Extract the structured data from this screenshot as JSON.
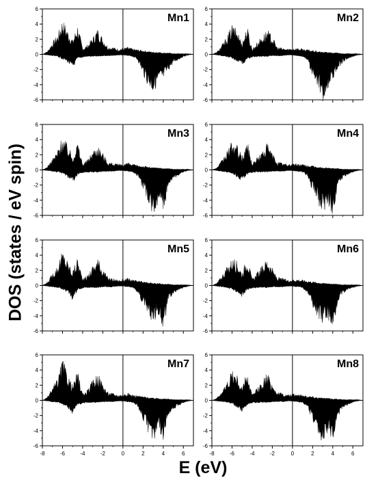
{
  "figure": {
    "ylabel": "DOS (states / eV spin)",
    "xlabel": "E (eV)",
    "fill_color": "#000000"
  },
  "chart_data": [
    {
      "type": "area",
      "title": "Mn1",
      "xlim": [
        -8,
        7
      ],
      "ylim": [
        -6,
        6
      ],
      "x_ticks": [
        "-8",
        "-6",
        "-4",
        "-2",
        "0",
        "2",
        "4",
        "6"
      ],
      "y_ticks": [
        "-6",
        "-4",
        "-2",
        "0",
        "2",
        "4",
        "6"
      ],
      "x": [
        -8,
        -7.5,
        -7,
        -6.5,
        -6,
        -5.5,
        -5,
        -4.5,
        -4,
        -3.5,
        -3,
        -2.5,
        -2,
        -1.5,
        -1,
        -0.5,
        0,
        0.5,
        1,
        1.5,
        2,
        2.5,
        3,
        3.5,
        4,
        4.5,
        5,
        5.5,
        6,
        6.5,
        7
      ],
      "up": [
        0,
        0.4,
        1.5,
        2.4,
        4.3,
        3.0,
        1.8,
        3.6,
        0.8,
        1.2,
        2.1,
        3.2,
        2.0,
        1.0,
        0.9,
        0.7,
        0.8,
        0.9,
        0.7,
        0.6,
        0.5,
        0.4,
        0.3,
        0.3,
        0.2,
        0.2,
        0.1,
        0.1,
        0.1,
        0.1,
        0
      ],
      "down": [
        0,
        -0.1,
        -0.2,
        -0.3,
        -0.6,
        -1.0,
        -1.8,
        -0.6,
        -0.4,
        -0.3,
        -0.3,
        -0.3,
        -0.2,
        -0.2,
        -0.2,
        -0.1,
        -0.1,
        -0.2,
        -0.3,
        -0.8,
        -2.5,
        -3.8,
        -4.7,
        -3.6,
        -3.2,
        -2.0,
        -1.1,
        -0.7,
        -0.3,
        -0.1,
        0
      ]
    },
    {
      "type": "area",
      "title": "Mn2",
      "xlim": [
        -8,
        7
      ],
      "ylim": [
        -6,
        6
      ],
      "x_ticks": [
        "-8",
        "-6",
        "-4",
        "-2",
        "0",
        "2",
        "4",
        "6"
      ],
      "y_ticks": [
        "-6",
        "-4",
        "-2",
        "0",
        "2",
        "4",
        "6"
      ],
      "x": [
        -8,
        -7.5,
        -7,
        -6.5,
        -6,
        -5.5,
        -5,
        -4.5,
        -4,
        -3.5,
        -3,
        -2.5,
        -2,
        -1.5,
        -1,
        -0.5,
        0,
        0.5,
        1,
        1.5,
        2,
        2.5,
        3,
        3.5,
        4,
        4.5,
        5,
        5.5,
        6,
        6.5,
        7
      ],
      "up": [
        0,
        0.3,
        1.2,
        2.2,
        3.6,
        3.0,
        1.5,
        3.4,
        0.7,
        1.5,
        2.3,
        3.0,
        2.2,
        0.9,
        0.8,
        0.7,
        0.8,
        0.8,
        0.7,
        0.6,
        0.5,
        0.4,
        0.3,
        0.3,
        0.2,
        0.2,
        0.1,
        0.1,
        0.1,
        0.1,
        0
      ],
      "down": [
        0,
        -0.1,
        -0.2,
        -0.3,
        -0.5,
        -0.9,
        -1.4,
        -0.6,
        -0.4,
        -0.3,
        -0.3,
        -0.3,
        -0.2,
        -0.2,
        -0.2,
        -0.1,
        -0.1,
        -0.2,
        -0.3,
        -0.9,
        -2.6,
        -4.0,
        -5.8,
        -4.2,
        -3.0,
        -1.8,
        -1.0,
        -0.6,
        -0.3,
        -0.1,
        0
      ]
    },
    {
      "type": "area",
      "title": "Mn3",
      "xlim": [
        -8,
        7
      ],
      "ylim": [
        -6,
        6
      ],
      "x_ticks": [
        "-8",
        "-6",
        "-4",
        "-2",
        "0",
        "2",
        "4",
        "6"
      ],
      "y_ticks": [
        "-6",
        "-4",
        "-2",
        "0",
        "2",
        "4",
        "6"
      ],
      "x": [
        -8,
        -7.5,
        -7,
        -6.5,
        -6,
        -5.5,
        -5,
        -4.5,
        -4,
        -3.5,
        -3,
        -2.5,
        -2,
        -1.5,
        -1,
        -0.5,
        0,
        0.5,
        1,
        1.5,
        2,
        2.5,
        3,
        3.5,
        4,
        4.5,
        5,
        5.5,
        6,
        6.5,
        7
      ],
      "up": [
        0,
        0.4,
        1.4,
        2.4,
        4.2,
        3.1,
        1.7,
        3.5,
        0.8,
        1.3,
        2.4,
        3.1,
        2.1,
        1.0,
        0.9,
        0.7,
        0.8,
        0.9,
        0.7,
        0.6,
        0.5,
        0.4,
        0.3,
        0.3,
        0.2,
        0.2,
        0.1,
        0.1,
        0.1,
        0.1,
        0
      ],
      "down": [
        0,
        -0.1,
        -0.2,
        -0.3,
        -0.5,
        -0.9,
        -1.7,
        -0.6,
        -0.4,
        -0.3,
        -0.3,
        -0.3,
        -0.2,
        -0.2,
        -0.2,
        -0.1,
        -0.1,
        -0.2,
        -0.3,
        -0.9,
        -2.5,
        -3.8,
        -5.5,
        -4.0,
        -5.4,
        -2.1,
        -1.1,
        -0.7,
        -0.3,
        -0.1,
        0
      ]
    },
    {
      "type": "area",
      "title": "Mn4",
      "xlim": [
        -8,
        7
      ],
      "ylim": [
        -6,
        6
      ],
      "x_ticks": [
        "-8",
        "-6",
        "-4",
        "-2",
        "0",
        "2",
        "4",
        "6"
      ],
      "y_ticks": [
        "-6",
        "-4",
        "-2",
        "0",
        "2",
        "4",
        "6"
      ],
      "x": [
        -8,
        -7.5,
        -7,
        -6.5,
        -6,
        -5.5,
        -5,
        -4.5,
        -4,
        -3.5,
        -3,
        -2.5,
        -2,
        -1.5,
        -1,
        -0.5,
        0,
        0.5,
        1,
        1.5,
        2,
        2.5,
        3,
        3.5,
        4,
        4.5,
        5,
        5.5,
        6,
        6.5,
        7
      ],
      "up": [
        0,
        0.3,
        1.2,
        2.3,
        3.5,
        3.0,
        1.6,
        3.6,
        0.8,
        1.6,
        2.3,
        3.3,
        2.1,
        1.0,
        0.9,
        0.7,
        0.8,
        0.8,
        0.7,
        0.6,
        0.5,
        0.4,
        0.3,
        0.3,
        0.2,
        0.2,
        0.1,
        0.1,
        0.1,
        0.1,
        0
      ],
      "down": [
        0,
        -0.1,
        -0.2,
        -0.3,
        -0.5,
        -0.9,
        -1.4,
        -0.6,
        -0.4,
        -0.3,
        -0.3,
        -0.3,
        -0.2,
        -0.2,
        -0.2,
        -0.1,
        -0.1,
        -0.2,
        -0.3,
        -0.8,
        -2.6,
        -4.0,
        -5.4,
        -4.2,
        -5.6,
        -2.0,
        -1.0,
        -0.6,
        -0.3,
        -0.1,
        0
      ]
    },
    {
      "type": "area",
      "title": "Mn5",
      "xlim": [
        -8,
        7
      ],
      "ylim": [
        -6,
        6
      ],
      "x_ticks": [
        "-8",
        "-6",
        "-4",
        "-2",
        "0",
        "2",
        "4",
        "6"
      ],
      "y_ticks": [
        "-6",
        "-4",
        "-2",
        "0",
        "2",
        "4",
        "6"
      ],
      "x": [
        -8,
        -7.5,
        -7,
        -6.5,
        -6,
        -5.5,
        -5,
        -4.5,
        -4,
        -3.5,
        -3,
        -2.5,
        -2,
        -1.5,
        -1,
        -0.5,
        0,
        0.5,
        1,
        1.5,
        2,
        2.5,
        3,
        3.5,
        4,
        4.5,
        5,
        5.5,
        6,
        6.5,
        7
      ],
      "up": [
        0,
        0.4,
        1.5,
        2.5,
        4.3,
        3.1,
        1.8,
        3.5,
        0.8,
        1.3,
        2.5,
        3.3,
        2.1,
        1.0,
        0.9,
        0.7,
        0.8,
        0.9,
        0.7,
        0.6,
        0.5,
        0.4,
        0.3,
        0.3,
        0.2,
        0.2,
        0.1,
        0.1,
        0.1,
        0.1,
        0
      ],
      "down": [
        0,
        -0.1,
        -0.2,
        -0.3,
        -0.5,
        -0.9,
        -1.8,
        -0.6,
        -0.4,
        -0.3,
        -0.3,
        -0.3,
        -0.2,
        -0.2,
        -0.2,
        -0.1,
        -0.1,
        -0.2,
        -0.3,
        -0.9,
        -2.4,
        -3.7,
        -4.4,
        -3.6,
        -5.7,
        -2.0,
        -1.1,
        -0.7,
        -0.3,
        -0.1,
        0
      ]
    },
    {
      "type": "area",
      "title": "Mn6",
      "xlim": [
        -8,
        7
      ],
      "ylim": [
        -6,
        6
      ],
      "x_ticks": [
        "-8",
        "-6",
        "-4",
        "-2",
        "0",
        "2",
        "4",
        "6"
      ],
      "y_ticks": [
        "-6",
        "-4",
        "-2",
        "0",
        "2",
        "4",
        "6"
      ],
      "x": [
        -8,
        -7.5,
        -7,
        -6.5,
        -6,
        -5.5,
        -5,
        -4.5,
        -4,
        -3.5,
        -3,
        -2.5,
        -2,
        -1.5,
        -1,
        -0.5,
        0,
        0.5,
        1,
        1.5,
        2,
        2.5,
        3,
        3.5,
        4,
        4.5,
        5,
        5.5,
        6,
        6.5,
        7
      ],
      "up": [
        0,
        0.3,
        1.3,
        2.3,
        3.3,
        3.0,
        1.6,
        3.5,
        0.8,
        1.6,
        2.4,
        3.4,
        2.1,
        1.0,
        0.9,
        0.7,
        0.8,
        0.8,
        0.7,
        0.6,
        0.5,
        0.4,
        0.3,
        0.3,
        0.2,
        0.2,
        0.1,
        0.1,
        0.1,
        0.1,
        0
      ],
      "down": [
        0,
        -0.1,
        -0.2,
        -0.3,
        -0.5,
        -0.9,
        -1.4,
        -0.6,
        -0.4,
        -0.3,
        -0.3,
        -0.3,
        -0.2,
        -0.2,
        -0.2,
        -0.1,
        -0.1,
        -0.2,
        -0.3,
        -0.9,
        -2.6,
        -3.9,
        -4.9,
        -4.1,
        -5.8,
        -2.0,
        -1.0,
        -0.6,
        -0.3,
        -0.1,
        0
      ]
    },
    {
      "type": "area",
      "title": "Mn7",
      "xlim": [
        -8,
        7
      ],
      "ylim": [
        -6,
        6
      ],
      "x_ticks": [
        "-8",
        "-6",
        "-4",
        "-2",
        "0",
        "2",
        "4",
        "6"
      ],
      "y_ticks": [
        "-6",
        "-4",
        "-2",
        "0",
        "2",
        "4",
        "6"
      ],
      "x": [
        -8,
        -7.5,
        -7,
        -6.5,
        -6,
        -5.5,
        -5,
        -4.5,
        -4,
        -3.5,
        -3,
        -2.5,
        -2,
        -1.5,
        -1,
        -0.5,
        0,
        0.5,
        1,
        1.5,
        2,
        2.5,
        3,
        3.5,
        4,
        4.5,
        5,
        5.5,
        6,
        6.5,
        7
      ],
      "up": [
        0,
        0.4,
        1.6,
        2.6,
        5.1,
        3.3,
        1.8,
        3.6,
        0.8,
        1.3,
        2.5,
        3.4,
        2.1,
        1.0,
        0.9,
        0.7,
        0.8,
        0.9,
        0.7,
        0.6,
        0.5,
        0.4,
        0.3,
        0.3,
        0.2,
        0.2,
        0.1,
        0.1,
        0.1,
        0.1,
        0
      ],
      "down": [
        0,
        -0.1,
        -0.2,
        -0.3,
        -0.5,
        -0.9,
        -1.7,
        -0.6,
        -0.4,
        -0.3,
        -0.3,
        -0.3,
        -0.2,
        -0.2,
        -0.2,
        -0.1,
        -0.1,
        -0.2,
        -0.3,
        -0.9,
        -2.5,
        -3.9,
        -5.0,
        -3.9,
        -4.8,
        -2.0,
        -1.1,
        -0.7,
        -0.3,
        -0.1,
        0
      ]
    },
    {
      "type": "area",
      "title": "Mn8",
      "xlim": [
        -8,
        7
      ],
      "ylim": [
        -6,
        6
      ],
      "x_ticks": [
        "-8",
        "-6",
        "-4",
        "-2",
        "0",
        "2",
        "4",
        "6"
      ],
      "y_ticks": [
        "-6",
        "-4",
        "-2",
        "0",
        "2",
        "4",
        "6"
      ],
      "x": [
        -8,
        -7.5,
        -7,
        -6.5,
        -6,
        -5.5,
        -5,
        -4.5,
        -4,
        -3.5,
        -3,
        -2.5,
        -2,
        -1.5,
        -1,
        -0.5,
        0,
        0.5,
        1,
        1.5,
        2,
        2.5,
        3,
        3.5,
        4,
        4.5,
        5,
        5.5,
        6,
        6.5,
        7
      ],
      "up": [
        0,
        0.3,
        1.2,
        2.2,
        3.9,
        3.0,
        1.6,
        3.5,
        0.7,
        1.5,
        2.4,
        3.4,
        2.1,
        1.0,
        0.9,
        0.7,
        0.8,
        0.8,
        0.7,
        0.6,
        0.5,
        0.4,
        0.3,
        0.3,
        0.2,
        0.2,
        0.1,
        0.1,
        0.1,
        0.1,
        0
      ],
      "down": [
        0,
        -0.1,
        -0.2,
        -0.3,
        -0.5,
        -0.9,
        -1.4,
        -0.6,
        -0.4,
        -0.3,
        -0.3,
        -0.3,
        -0.2,
        -0.2,
        -0.2,
        -0.1,
        -0.1,
        -0.2,
        -0.3,
        -0.9,
        -2.5,
        -3.8,
        -5.5,
        -4.1,
        -4.7,
        -2.0,
        -1.0,
        -0.6,
        -0.3,
        -0.1,
        0
      ]
    }
  ]
}
